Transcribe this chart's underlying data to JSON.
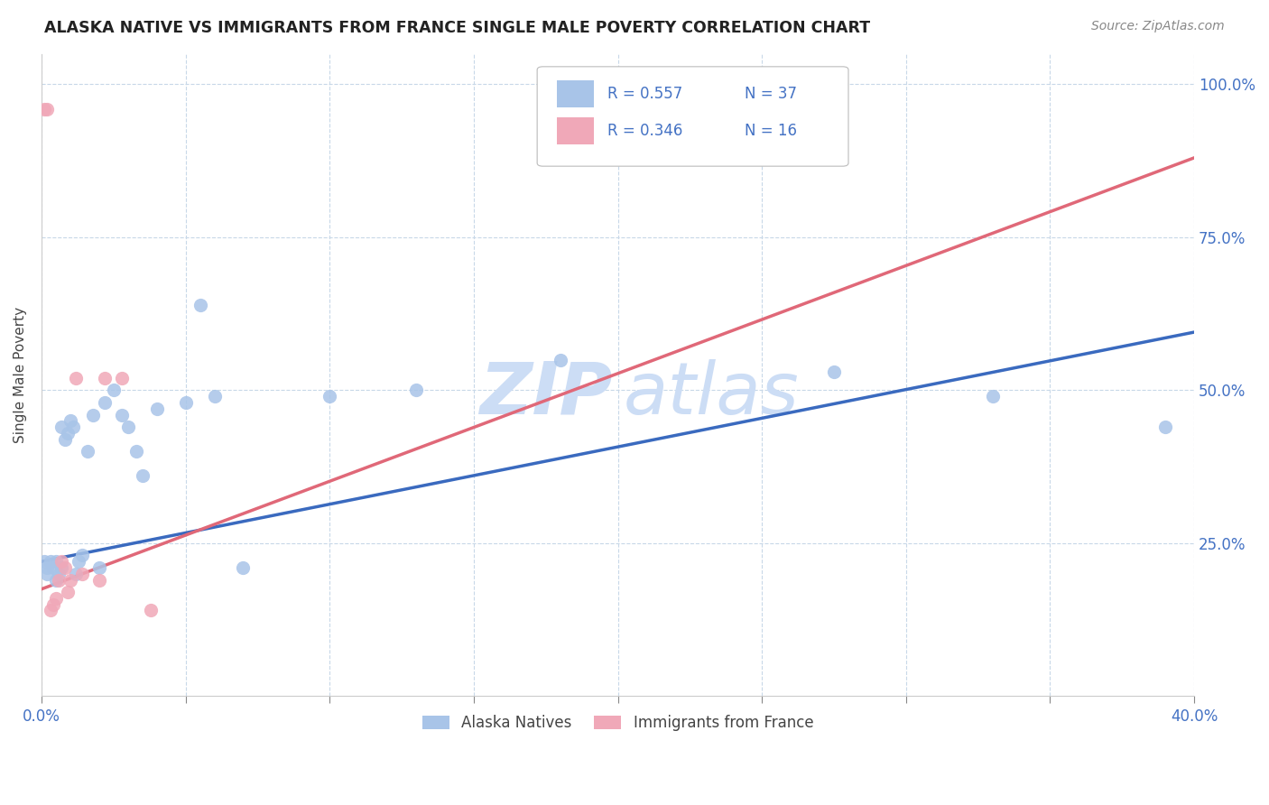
{
  "title": "ALASKA NATIVE VS IMMIGRANTS FROM FRANCE SINGLE MALE POVERTY CORRELATION CHART",
  "source": "Source: ZipAtlas.com",
  "ylabel": "Single Male Poverty",
  "legend_label1": "Alaska Natives",
  "legend_label2": "Immigrants from France",
  "R1": "0.557",
  "N1": "37",
  "R2": "0.346",
  "N2": "16",
  "color_blue": "#a8c4e8",
  "color_pink": "#f0a8b8",
  "color_line_blue": "#3a6abf",
  "color_line_pink": "#e06878",
  "color_watermark": "#ccddf5",
  "xmin": 0.0,
  "xmax": 0.4,
  "ymin": 0.0,
  "ymax": 1.05,
  "ytick_positions": [
    0.25,
    0.5,
    0.75,
    1.0
  ],
  "ytick_labels": [
    "25.0%",
    "50.0%",
    "75.0%",
    "100.0%"
  ],
  "xtick_positions": [
    0.0,
    0.05,
    0.1,
    0.15,
    0.2,
    0.25,
    0.3,
    0.35,
    0.4
  ],
  "blue_scatter_x": [
    0.001,
    0.002,
    0.002,
    0.003,
    0.004,
    0.005,
    0.005,
    0.006,
    0.007,
    0.007,
    0.008,
    0.009,
    0.01,
    0.011,
    0.012,
    0.013,
    0.014,
    0.016,
    0.018,
    0.02,
    0.022,
    0.025,
    0.028,
    0.03,
    0.033,
    0.035,
    0.04,
    0.05,
    0.055,
    0.06,
    0.07,
    0.1,
    0.13,
    0.18,
    0.275,
    0.33,
    0.39
  ],
  "blue_scatter_y": [
    0.22,
    0.21,
    0.2,
    0.22,
    0.21,
    0.22,
    0.19,
    0.2,
    0.21,
    0.44,
    0.42,
    0.43,
    0.45,
    0.44,
    0.2,
    0.22,
    0.23,
    0.4,
    0.46,
    0.21,
    0.48,
    0.5,
    0.46,
    0.44,
    0.4,
    0.36,
    0.47,
    0.48,
    0.64,
    0.49,
    0.21,
    0.49,
    0.5,
    0.55,
    0.53,
    0.49,
    0.44
  ],
  "pink_scatter_x": [
    0.001,
    0.002,
    0.003,
    0.004,
    0.005,
    0.006,
    0.007,
    0.008,
    0.009,
    0.01,
    0.012,
    0.014,
    0.02,
    0.022,
    0.028,
    0.038
  ],
  "pink_scatter_y": [
    0.96,
    0.96,
    0.14,
    0.15,
    0.16,
    0.19,
    0.22,
    0.21,
    0.17,
    0.19,
    0.52,
    0.2,
    0.19,
    0.52,
    0.52,
    0.14
  ],
  "blue_line_x": [
    0.0,
    0.4
  ],
  "blue_line_y": [
    0.22,
    0.595
  ],
  "pink_line_x": [
    0.0,
    0.4
  ],
  "pink_line_y": [
    0.175,
    0.88
  ]
}
